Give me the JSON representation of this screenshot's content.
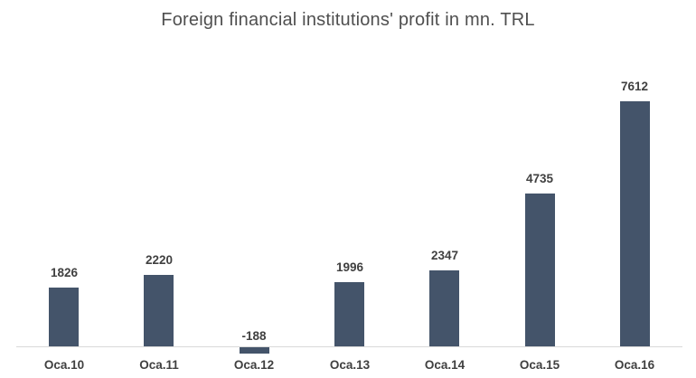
{
  "chart_data": {
    "type": "bar",
    "title": "Foreign financial institutions' profit in mn. TRL",
    "categories": [
      "Oca.10",
      "Oca.11",
      "Oca.12",
      "Oca.13",
      "Oca.14",
      "Oca.15",
      "Oca.16"
    ],
    "values": [
      1826,
      2220,
      -188,
      1996,
      2347,
      4735,
      7612
    ],
    "series_name": "Foreign financial institutions' profit (mn. TRL)",
    "xlabel": "",
    "ylabel": "",
    "baseline": 0,
    "ylim": [
      -400,
      8000
    ],
    "grid": false,
    "legend": null,
    "data_labels": true,
    "colors": {
      "bar_fill": "#44546a",
      "axis_line": "#d9d9d9",
      "value_label": "#404040",
      "x_label": "#404040",
      "title": "#4f4f4f",
      "background": "#ffffff"
    }
  }
}
